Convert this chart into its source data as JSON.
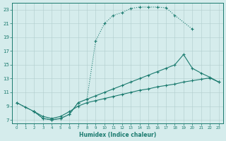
{
  "xlabel": "Humidex (Indice chaleur)",
  "xlim": [
    -0.5,
    23.5
  ],
  "ylim": [
    6.5,
    24
  ],
  "yticks": [
    7,
    9,
    11,
    13,
    15,
    17,
    19,
    21,
    23
  ],
  "xticks": [
    0,
    1,
    2,
    3,
    4,
    5,
    6,
    7,
    8,
    9,
    10,
    11,
    12,
    13,
    14,
    15,
    16,
    17,
    18,
    19,
    20,
    21,
    22,
    23
  ],
  "background_color": "#d5ecec",
  "grid_color": "#b0cccc",
  "line_color": "#1a7a6e",
  "curve1_x": [
    0,
    1,
    2,
    3,
    4,
    5,
    6,
    7,
    8,
    9,
    10,
    11,
    12,
    13,
    14,
    15,
    16,
    17,
    18,
    20
  ],
  "curve1_y": [
    9.5,
    8.8,
    8.2,
    7.2,
    7.0,
    7.2,
    7.8,
    9.5,
    10.0,
    18.5,
    21.0,
    22.2,
    22.6,
    23.2,
    23.4,
    23.4,
    23.4,
    23.3,
    22.2,
    20.2
  ],
  "curve2_x": [
    2,
    3,
    4,
    5,
    6,
    7,
    8,
    9,
    10,
    11,
    12,
    13,
    14,
    15,
    16,
    17,
    18,
    19,
    20,
    21,
    22,
    23
  ],
  "curve2_y": [
    8.2,
    7.2,
    7.0,
    7.2,
    7.8,
    9.5,
    10.0,
    10.5,
    11.0,
    11.5,
    12.0,
    12.5,
    13.0,
    13.5,
    14.0,
    14.5,
    15.0,
    16.5,
    14.5,
    13.8,
    13.2,
    12.5
  ],
  "curve3_x": [
    0,
    2,
    3,
    4,
    5,
    6,
    7,
    8,
    9,
    10,
    11,
    12,
    13,
    14,
    15,
    16,
    17,
    18,
    19,
    20,
    21,
    22,
    23
  ],
  "curve3_y": [
    9.5,
    8.2,
    7.5,
    7.2,
    7.5,
    8.2,
    9.0,
    9.5,
    9.8,
    10.1,
    10.4,
    10.7,
    11.0,
    11.3,
    11.5,
    11.8,
    12.0,
    12.2,
    12.5,
    12.7,
    12.9,
    13.1,
    12.5
  ],
  "curve1_style": "dotted",
  "curve2_style": "solid",
  "curve3_style": "solid"
}
